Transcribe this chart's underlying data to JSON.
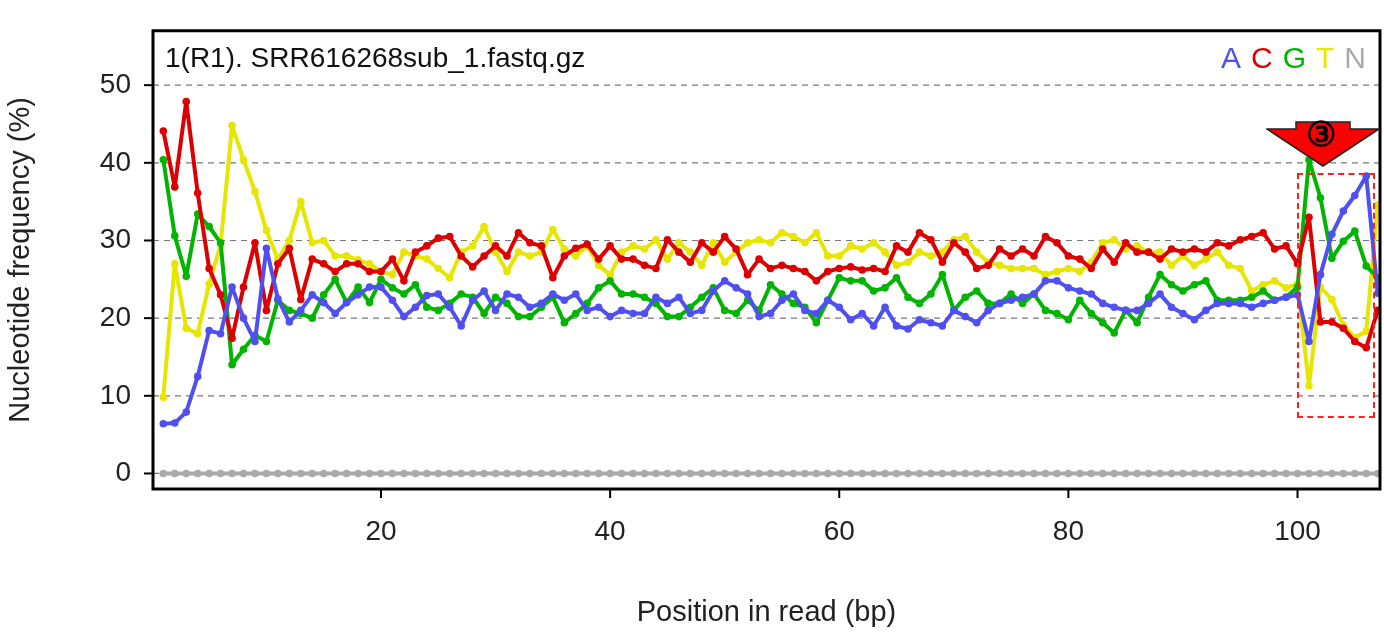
{
  "chart_data": {
    "type": "line",
    "title": "1(R1). SRR616268sub_1.fastq.gz",
    "xlabel": "Position in read (bp)",
    "ylabel": "Nucleotide frequency (%)",
    "x": [
      1,
      2,
      3,
      4,
      5,
      6,
      7,
      8,
      9,
      10,
      11,
      12,
      13,
      14,
      15,
      16,
      17,
      18,
      19,
      20,
      21,
      22,
      23,
      24,
      25,
      26,
      27,
      28,
      29,
      30,
      31,
      32,
      33,
      34,
      35,
      36,
      37,
      38,
      39,
      40,
      41,
      42,
      43,
      44,
      45,
      46,
      47,
      48,
      49,
      50,
      51,
      52,
      53,
      54,
      55,
      56,
      57,
      58,
      59,
      60,
      61,
      62,
      63,
      64,
      65,
      66,
      67,
      68,
      69,
      70,
      71,
      72,
      73,
      74,
      75,
      76,
      77,
      78,
      79,
      80,
      81,
      82,
      83,
      84,
      85,
      86,
      87,
      88,
      89,
      90,
      91,
      92,
      93,
      94,
      95,
      96,
      97,
      98,
      99,
      100,
      101,
      102,
      103,
      104,
      105,
      106,
      107
    ],
    "series": [
      {
        "name": "A",
        "color": "#5050f0",
        "values": [
          6.4,
          6.5,
          7.9,
          12.5,
          18.4,
          18,
          24,
          20,
          17,
          29,
          22.5,
          19.5,
          21,
          23,
          22,
          20.6,
          22,
          23,
          24,
          24,
          22.3,
          20.2,
          21.4,
          22.9,
          23.1,
          21.4,
          19,
          22.3,
          23.5,
          21,
          23.1,
          22.7,
          21.4,
          21.9,
          23.1,
          22.3,
          23.1,
          21,
          21.4,
          20.2,
          21,
          20.6,
          20.6,
          22.7,
          21.9,
          22.7,
          20.6,
          21,
          23.5,
          24.8,
          23.9,
          23.1,
          20.2,
          20.6,
          22.3,
          23.1,
          21,
          20.6,
          22.3,
          21.4,
          19.8,
          20.6,
          19,
          21.4,
          19,
          18.6,
          19.8,
          19.4,
          19,
          21,
          20.2,
          19.4,
          21,
          21.9,
          22.3,
          22.7,
          23.1,
          24.8,
          24.8,
          23.9,
          23.5,
          23.1,
          21.9,
          21.4,
          21,
          21,
          21.9,
          23.1,
          21.4,
          20.6,
          19.8,
          21,
          21.9,
          21.9,
          21.9,
          21.4,
          21.9,
          22.3,
          22.7,
          23,
          17,
          25.6,
          30.8,
          33.8,
          35.8,
          38.3,
          23.2
        ]
      },
      {
        "name": "C",
        "color": "#dd0000",
        "values": [
          44.1,
          36.9,
          47.9,
          36.1,
          26.4,
          23,
          17.4,
          24,
          29.7,
          21,
          27,
          29,
          22.4,
          27.6,
          27,
          26,
          27,
          27,
          26,
          26,
          27.6,
          24.8,
          28.5,
          29.3,
          30.3,
          30.5,
          28,
          26.6,
          28,
          29.3,
          28,
          31,
          29.7,
          29.3,
          25.2,
          28,
          29,
          29.5,
          27.6,
          29.3,
          27.6,
          27.6,
          26.8,
          26.4,
          30.1,
          28.5,
          27.2,
          29.7,
          28.5,
          30.5,
          28.9,
          25.6,
          27.6,
          26.4,
          26.8,
          26.4,
          26,
          24.8,
          26,
          26.4,
          26.6,
          26.2,
          26.4,
          26,
          29.3,
          28.5,
          31,
          30.1,
          27.2,
          29.7,
          28.5,
          26.4,
          26.8,
          28.9,
          28,
          28.9,
          28,
          30.5,
          29.7,
          28,
          27.6,
          26.4,
          28.9,
          27.2,
          29.7,
          28.5,
          28.5,
          27.6,
          28.9,
          28.5,
          28.9,
          28.5,
          29.7,
          29.3,
          30.1,
          30.5,
          31,
          28.9,
          29.3,
          27,
          33,
          19.5,
          19.5,
          18.7,
          17,
          16.2,
          21
        ]
      },
      {
        "name": "G",
        "color": "#00b400",
        "values": [
          40.4,
          30.6,
          25.4,
          33.4,
          31.8,
          29.7,
          14,
          16,
          17.8,
          17,
          22.3,
          21,
          20.6,
          20,
          23,
          25,
          22,
          24,
          22,
          25,
          23.9,
          23.1,
          24.3,
          21.4,
          21,
          21.9,
          23.1,
          22.7,
          20.6,
          22.7,
          21.9,
          20.2,
          20.2,
          21.4,
          22.7,
          19.4,
          20.6,
          21.9,
          23.9,
          24.8,
          23.1,
          23.1,
          22.7,
          21.9,
          20.2,
          20.2,
          21.4,
          22.7,
          23.9,
          21,
          20.6,
          22.3,
          21,
          24.3,
          23.1,
          21.9,
          21.4,
          19.4,
          22.3,
          25.2,
          24.8,
          24.8,
          23.5,
          23.9,
          25.2,
          22.7,
          21.9,
          23.1,
          25.6,
          21,
          22.7,
          23.5,
          21.9,
          21.9,
          23.1,
          21.9,
          23.1,
          21,
          20.6,
          19.8,
          22.3,
          20.6,
          19.4,
          18.1,
          21,
          19.4,
          22.7,
          25.6,
          24.3,
          23.5,
          24.3,
          24.8,
          22.3,
          22.3,
          22.3,
          22.7,
          23.5,
          22.3,
          22.7,
          24,
          40.4,
          35.5,
          27.7,
          29.9,
          31.2,
          26.7,
          25.2
        ]
      },
      {
        "name": "T",
        "color": "#e6e600",
        "values": [
          9.8,
          27,
          18.7,
          18,
          24.4,
          29.4,
          44.8,
          40.4,
          36.3,
          31.3,
          27.6,
          30,
          35,
          29.7,
          30,
          28,
          28,
          27.5,
          27,
          26,
          25.6,
          28.5,
          28,
          27.6,
          26.4,
          25.2,
          28.5,
          29.3,
          31.8,
          28.5,
          26,
          28.5,
          28,
          28.5,
          31.4,
          28.9,
          28,
          29.3,
          26.8,
          25.6,
          28.5,
          29.3,
          28.9,
          30.1,
          27.6,
          29.7,
          28.5,
          26.8,
          29.7,
          27.2,
          28.5,
          29.7,
          30.1,
          29.7,
          31,
          30.5,
          29.7,
          31,
          28,
          28,
          29.3,
          28.9,
          29.7,
          28.5,
          26.8,
          27.2,
          28.5,
          28,
          28.5,
          30.1,
          30.5,
          28.5,
          27.2,
          26.8,
          26.4,
          26.4,
          26.4,
          25.6,
          26,
          26.4,
          26,
          27.2,
          29.7,
          30.1,
          28.9,
          29.3,
          28.5,
          28.5,
          26.8,
          28,
          26.8,
          27.6,
          28.5,
          26.8,
          26.4,
          23.5,
          24.3,
          24.8,
          23.9,
          24.4,
          11.3,
          24,
          22.4,
          19.1,
          17.5,
          18.3,
          34.6
        ]
      },
      {
        "name": "N",
        "color": "#aaaaaa",
        "values": [
          0,
          0,
          0,
          0,
          0,
          0,
          0,
          0,
          0,
          0,
          0,
          0,
          0,
          0,
          0,
          0,
          0,
          0,
          0,
          0,
          0,
          0,
          0,
          0,
          0,
          0,
          0,
          0,
          0,
          0,
          0,
          0,
          0,
          0,
          0,
          0,
          0,
          0,
          0,
          0,
          0,
          0,
          0,
          0,
          0,
          0,
          0,
          0,
          0,
          0,
          0,
          0,
          0,
          0,
          0,
          0,
          0,
          0,
          0,
          0,
          0,
          0,
          0,
          0,
          0,
          0,
          0,
          0,
          0,
          0,
          0,
          0,
          0,
          0,
          0,
          0,
          0,
          0,
          0,
          0,
          0,
          0,
          0,
          0,
          0,
          0,
          0,
          0,
          0,
          0,
          0,
          0,
          0,
          0,
          0,
          0,
          0,
          0,
          0,
          0,
          0,
          0,
          0,
          0,
          0,
          0,
          0
        ]
      }
    ],
    "xlim": [
      0.1,
      107.2
    ],
    "xticks": [
      20,
      40,
      60,
      80,
      100
    ],
    "ylim": [
      -2,
      57
    ],
    "yticks": [
      0,
      10,
      20,
      30,
      40,
      50
    ],
    "grid": "y",
    "legend": "top right",
    "marker": "circle",
    "line_style": "solid",
    "annotations": [
      "③"
    ]
  }
}
